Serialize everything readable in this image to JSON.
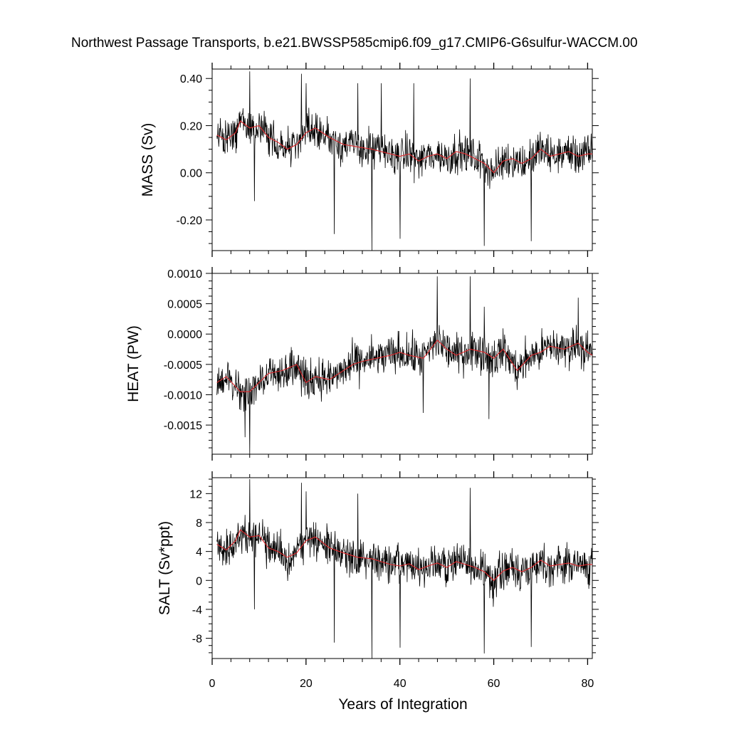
{
  "title": "Northwest Passage Transports, b.e21.BWSSP585cmip6.f09_g17.CMIP6-G6sulfur-WACCM.00",
  "xlabel": "Years of Integration",
  "x_ticks": [
    "0",
    "20",
    "40",
    "60",
    "80"
  ],
  "colors": {
    "raw_series": "#000000",
    "smoothed_series": "#e0282c"
  },
  "chart_data": [
    {
      "type": "line",
      "ylabel": "MASS (Sv)",
      "yticks": [
        -0.2,
        0.0,
        0.2,
        0.4
      ],
      "ytick_labels": [
        "-0.20",
        "0.00",
        "0.20",
        "0.40"
      ],
      "xlim": [
        0,
        81
      ],
      "ylim": [
        -0.33,
        0.44
      ],
      "smoothed": {
        "x": [
          1,
          3,
          5,
          6,
          8,
          10,
          12,
          14,
          16,
          18,
          20,
          22,
          25,
          28,
          31,
          34,
          36,
          38,
          40,
          42,
          44,
          46,
          48,
          50,
          52,
          54,
          56,
          58,
          60,
          62,
          64,
          66,
          68,
          70,
          72,
          74,
          76,
          78,
          80,
          81
        ],
        "y": [
          0.16,
          0.14,
          0.17,
          0.22,
          0.19,
          0.2,
          0.15,
          0.13,
          0.1,
          0.12,
          0.17,
          0.19,
          0.15,
          0.12,
          0.11,
          0.1,
          0.09,
          0.08,
          0.07,
          0.08,
          0.05,
          0.07,
          0.08,
          0.06,
          0.09,
          0.08,
          0.06,
          0.04,
          0.0,
          0.05,
          0.06,
          0.04,
          0.06,
          0.1,
          0.07,
          0.08,
          0.09,
          0.07,
          0.08,
          0.08
        ]
      },
      "spikes": [
        [
          8,
          0.43
        ],
        [
          19,
          0.42
        ],
        [
          20,
          0.38
        ],
        [
          31,
          0.38
        ],
        [
          36,
          0.38
        ],
        [
          43,
          0.38
        ],
        [
          55,
          0.4
        ],
        [
          26,
          -0.26
        ],
        [
          34,
          -0.33
        ],
        [
          40,
          -0.28
        ],
        [
          58,
          -0.31
        ],
        [
          68,
          -0.29
        ],
        [
          9,
          -0.12
        ]
      ],
      "noise": 0.07
    },
    {
      "type": "line",
      "ylabel": "HEAT (PW)",
      "yticks": [
        -0.0015,
        -0.001,
        -0.0005,
        0.0,
        0.0005,
        0.001
      ],
      "ytick_labels": [
        "-0.0015",
        "-0.0010",
        "-0.0005",
        "0.0000",
        "0.0005",
        "0.0010"
      ],
      "xlim": [
        0,
        81
      ],
      "ylim": [
        -0.00198,
        0.001
      ],
      "smoothed": {
        "x": [
          1,
          3,
          6,
          8,
          10,
          12,
          15,
          18,
          20,
          22,
          25,
          28,
          30,
          32,
          35,
          38,
          40,
          42,
          45,
          48,
          50,
          52,
          55,
          58,
          60,
          62,
          65,
          68,
          70,
          72,
          75,
          78,
          80,
          81
        ],
        "y": [
          -0.0008,
          -0.0007,
          -0.00095,
          -0.00095,
          -0.0008,
          -0.00065,
          -0.0006,
          -0.0005,
          -0.0008,
          -0.0007,
          -0.00075,
          -0.0006,
          -0.0005,
          -0.00045,
          -0.0004,
          -0.00035,
          -0.0003,
          -0.00035,
          -0.0004,
          -0.0001,
          -0.00025,
          -0.00035,
          -0.00025,
          -0.0003,
          -0.0004,
          -0.00025,
          -0.0006,
          -0.00035,
          -0.0003,
          -0.0002,
          -0.00025,
          -0.00015,
          -0.0003,
          -0.00035
        ]
      },
      "spikes": [
        [
          48,
          0.00095
        ],
        [
          55,
          0.00095
        ],
        [
          58,
          0.00045
        ],
        [
          78,
          0.0006
        ],
        [
          8,
          -0.00198
        ],
        [
          7,
          -0.0017
        ],
        [
          45,
          -0.0013
        ],
        [
          59,
          -0.0014
        ]
      ],
      "noise": 0.00028
    },
    {
      "type": "line",
      "ylabel": "SALT (Sv*ppt)",
      "yticks": [
        -8,
        -4,
        0,
        4,
        8,
        12
      ],
      "ytick_labels": [
        "-8",
        "-4",
        "0",
        "4",
        "8",
        "12"
      ],
      "xlim": [
        0,
        81
      ],
      "ylim": [
        -10.8,
        14.2
      ],
      "smoothed": {
        "x": [
          1,
          3,
          5,
          6,
          8,
          10,
          12,
          14,
          16,
          18,
          20,
          22,
          25,
          28,
          31,
          34,
          36,
          38,
          40,
          42,
          44,
          46,
          48,
          50,
          52,
          54,
          56,
          58,
          60,
          62,
          64,
          66,
          68,
          70,
          72,
          74,
          76,
          78,
          80,
          81
        ],
        "y": [
          5,
          4.2,
          5.5,
          7,
          6,
          6.2,
          4.5,
          4,
          3.2,
          3.8,
          5.5,
          6,
          4.5,
          3.8,
          3.2,
          3,
          2.6,
          2.2,
          2,
          2.3,
          1.5,
          2,
          2.4,
          1.8,
          2.6,
          2.2,
          1.8,
          1.2,
          0,
          1.3,
          1.8,
          1.2,
          1.8,
          2.8,
          2,
          2.2,
          2.4,
          2,
          2.2,
          2.2
        ]
      },
      "spikes": [
        [
          8,
          14
        ],
        [
          19,
          13.5
        ],
        [
          20,
          12.3
        ],
        [
          31,
          12
        ],
        [
          55,
          12.8
        ],
        [
          26,
          -8.6
        ],
        [
          34,
          -10.8
        ],
        [
          40,
          -9.3
        ],
        [
          58,
          -10.1
        ],
        [
          68,
          -9.2
        ],
        [
          9,
          -4
        ]
      ],
      "noise": 2.3
    }
  ]
}
